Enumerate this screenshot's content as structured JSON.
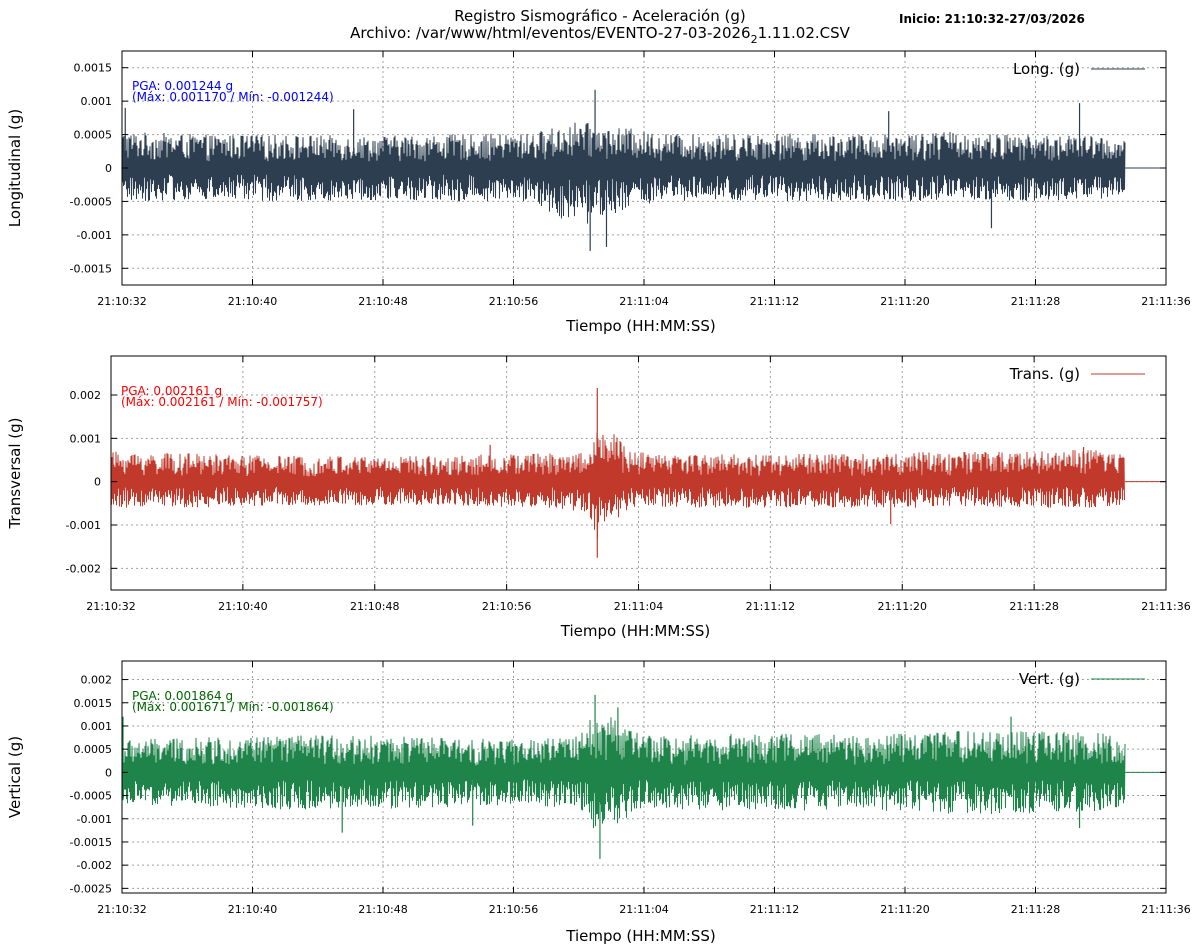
{
  "header": {
    "title": "Registro Sismográfico - Aceleración (g)",
    "file_prefix": "Archivo: /var/www/html/eventos/EVENTO-27-03-2026",
    "file_subscript": "2",
    "file_suffix": "1.11.02.CSV",
    "start": "Inicio: 21:10:32-27/03/2026"
  },
  "chart_data": [
    {
      "type": "line",
      "title": "",
      "xlabel": "Tiempo (HH:MM:SS)",
      "ylabel": "Longitudinal (g)",
      "xlim": [
        "21:10:32",
        "21:11:36"
      ],
      "ylim": [
        -0.00175,
        0.00175
      ],
      "x_ticks": [
        "21:10:32",
        "21:10:40",
        "21:10:48",
        "21:10:56",
        "21:11:04",
        "21:11:12",
        "21:11:20",
        "21:11:28",
        "21:11:36"
      ],
      "y_ticks": [
        0.0015,
        0.001,
        0.0005,
        0,
        -0.0005,
        -0.001,
        -0.0015
      ],
      "y_tick_labels": [
        "0.0015",
        "0.001",
        "0.0005",
        "0",
        "-0.0005",
        "-0.001",
        "-0.0015"
      ],
      "grid": true,
      "legend_position": "top-right",
      "series": [
        {
          "name": "Long. (g)",
          "color": "#2c3e50"
        }
      ],
      "data_end": "21:11:33.5",
      "envelope": {
        "x_seconds": [
          0,
          5,
          10,
          15,
          20,
          25,
          28,
          29,
          30,
          31,
          32,
          35,
          40,
          45,
          50,
          55,
          60,
          61.5
        ],
        "upper": [
          0.00055,
          0.0005,
          0.0005,
          0.00048,
          0.0005,
          0.00052,
          0.0007,
          0.00065,
          0.0006,
          0.0006,
          0.00055,
          0.0005,
          0.00052,
          0.0005,
          0.00055,
          0.0005,
          0.00048,
          0.0004
        ],
        "lower": [
          -0.0005,
          -0.00048,
          -0.0005,
          -0.00048,
          -0.0005,
          -0.0005,
          -0.0009,
          -0.0008,
          -0.0007,
          -0.0006,
          -0.00055,
          -0.0005,
          -0.0005,
          -0.0005,
          -0.0005,
          -0.0005,
          -0.00048,
          -0.0004
        ]
      },
      "spikes": [
        [
          0.2,
          0.0009
        ],
        [
          29.0,
          0.00117
        ],
        [
          28.7,
          -0.00124
        ],
        [
          29.7,
          -0.00118
        ],
        [
          58.7,
          0.00097
        ],
        [
          53.3,
          -0.0009
        ],
        [
          47.0,
          0.00085
        ],
        [
          14.2,
          0.00088
        ]
      ],
      "annotation": {
        "line1": "PGA: 0.001244 g",
        "line2": "(Máx: 0.001170 / Mín: -0.001244)",
        "color": "#0000ff"
      }
    },
    {
      "type": "line",
      "title": "",
      "xlabel": "Tiempo (HH:MM:SS)",
      "ylabel": "Transversal (g)",
      "xlim": [
        "21:10:32",
        "21:11:36"
      ],
      "ylim": [
        -0.0025,
        0.0029
      ],
      "x_ticks": [
        "21:10:32",
        "21:10:40",
        "21:10:48",
        "21:10:56",
        "21:11:04",
        "21:11:12",
        "21:11:20",
        "21:11:28",
        "21:11:36"
      ],
      "y_ticks": [
        0.002,
        0.001,
        0,
        -0.001,
        -0.002
      ],
      "y_tick_labels": [
        "0.002",
        "0.001",
        "0",
        "-0.001",
        "-0.002"
      ],
      "grid": true,
      "legend_position": "top-right",
      "series": [
        {
          "name": "Trans. (g)",
          "color": "#c0392b"
        }
      ],
      "data_end": "21:11:33.5",
      "envelope": {
        "x_seconds": [
          0,
          5,
          10,
          15,
          20,
          25,
          29,
          29.4,
          29.8,
          30.2,
          30.6,
          31,
          31.5,
          33,
          40,
          45,
          50,
          55,
          60,
          61.5
        ],
        "upper": [
          0.0007,
          0.00065,
          0.0006,
          0.0006,
          0.0006,
          0.00065,
          0.0007,
          0.0013,
          0.0012,
          0.0009,
          0.00115,
          0.0009,
          0.0007,
          0.00065,
          0.00065,
          0.00065,
          0.0007,
          0.0007,
          0.00075,
          0.00065
        ],
        "lower": [
          -0.0006,
          -0.0006,
          -0.00055,
          -0.00055,
          -0.00055,
          -0.0006,
          -0.0007,
          -0.0014,
          -0.0012,
          -0.0009,
          -0.001,
          -0.0008,
          -0.0006,
          -0.0006,
          -0.0006,
          -0.0006,
          -0.0006,
          -0.0006,
          -0.0006,
          -0.00055
        ]
      },
      "spikes": [
        [
          29.5,
          0.002161
        ],
        [
          29.5,
          -0.001757
        ],
        [
          23.0,
          0.00085
        ],
        [
          47.3,
          -0.00098
        ],
        [
          59.0,
          0.0008
        ]
      ],
      "annotation": {
        "line1": "PGA: 0.002161 g",
        "line2": "(Máx: 0.002161 / Mín: -0.001757)",
        "color": "#ff0000"
      }
    },
    {
      "type": "line",
      "title": "",
      "xlabel": "Tiempo (HH:MM:SS)",
      "ylabel": "Vertical (g)",
      "xlim": [
        "21:10:32",
        "21:11:36"
      ],
      "ylim": [
        -0.0026,
        0.0024
      ],
      "x_ticks": [
        "21:10:32",
        "21:10:40",
        "21:10:48",
        "21:10:56",
        "21:11:04",
        "21:11:12",
        "21:11:20",
        "21:11:28",
        "21:11:36"
      ],
      "y_ticks": [
        0.002,
        0.0015,
        0.001,
        0.0005,
        0,
        -0.0005,
        -0.001,
        -0.0015,
        -0.002,
        -0.0025
      ],
      "y_tick_labels": [
        "0.002",
        "0.0015",
        "0.001",
        "0.0005",
        "0",
        "-0.0005",
        "-0.001",
        "-0.0015",
        "-0.002",
        "-0.0025"
      ],
      "grid": true,
      "legend_position": "top-right",
      "series": [
        {
          "name": "Vert. (g)",
          "color": "#1e8449"
        }
      ],
      "data_end": "21:11:33.5",
      "envelope": {
        "x_seconds": [
          0,
          5,
          10,
          15,
          20,
          25,
          28,
          29,
          30,
          31,
          32,
          35,
          40,
          45,
          50,
          55,
          60,
          61.5
        ],
        "upper": [
          0.0007,
          0.00075,
          0.0008,
          0.0008,
          0.00075,
          0.0007,
          0.0008,
          0.0013,
          0.0012,
          0.001,
          0.0008,
          0.0008,
          0.00085,
          0.0008,
          0.0009,
          0.0009,
          0.00085,
          0.0007
        ],
        "lower": [
          -0.0007,
          -0.00075,
          -0.0008,
          -0.0008,
          -0.00075,
          -0.0007,
          -0.0008,
          -0.0013,
          -0.0012,
          -0.001,
          -0.0008,
          -0.0008,
          -0.00085,
          -0.0008,
          -0.0009,
          -0.0009,
          -0.00085,
          -0.0007
        ],
        "start_pulse": 0.0012
      },
      "spikes": [
        [
          29.0,
          0.001671
        ],
        [
          29.3,
          -0.001864
        ],
        [
          30.4,
          0.0014
        ],
        [
          13.5,
          -0.0013
        ],
        [
          54.5,
          0.0012
        ],
        [
          58.7,
          -0.0012
        ],
        [
          21.5,
          -0.00115
        ]
      ],
      "annotation": {
        "line1": "PGA: 0.001864 g",
        "line2": "(Máx: 0.001671 / Mín: -0.001864)",
        "color": "#006400"
      }
    }
  ]
}
